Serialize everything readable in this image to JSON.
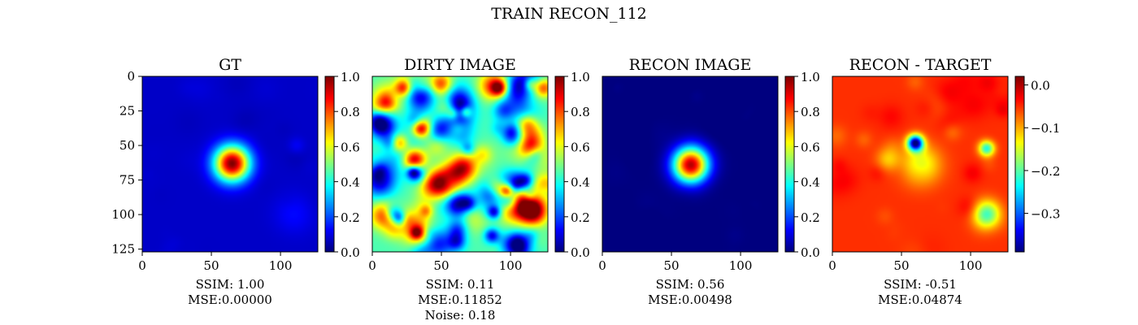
{
  "figure": {
    "suptitle": "TRAIN RECON_112"
  },
  "colors": {
    "jet": [
      "#00007f",
      "#0000ff",
      "#007fff",
      "#00ffff",
      "#7fff7f",
      "#ffff00",
      "#ff7f00",
      "#ff0000",
      "#7f0000"
    ]
  },
  "chart_data": [
    {
      "type": "heatmap",
      "title": "GT",
      "colormap": "jet",
      "image_size": [
        128,
        128
      ],
      "xticks": [
        0,
        50,
        100
      ],
      "yticks": [
        0,
        25,
        50,
        75,
        100,
        125
      ],
      "xlim": [
        0,
        127
      ],
      "ylim": [
        127,
        0
      ],
      "colorbar": {
        "ticks": [
          "0.0",
          "0.2",
          "0.4",
          "0.6",
          "0.8",
          "1.0"
        ],
        "range": [
          0.0,
          1.0
        ]
      },
      "background_level": 0.07,
      "blobs": [
        {
          "x": 65,
          "y": 63,
          "sigma": 9,
          "amp": 0.93
        },
        {
          "x": 110,
          "y": 100,
          "sigma": 10,
          "amp": 0.06
        },
        {
          "x": 112,
          "y": 50,
          "sigma": 4,
          "amp": 0.05
        }
      ],
      "metrics": [
        "SSIM: 1.00",
        "MSE:0.00000"
      ]
    },
    {
      "type": "heatmap",
      "title": "DIRTY IMAGE",
      "colormap": "jet",
      "image_size": [
        128,
        128
      ],
      "xticks": [
        0,
        50,
        100
      ],
      "xlim": [
        0,
        127
      ],
      "ylim": [
        127,
        0
      ],
      "colorbar": {
        "ticks": [
          "0.0",
          "0.2",
          "0.4",
          "0.6",
          "0.8",
          "1.0"
        ],
        "range": [
          0.0,
          1.0
        ]
      },
      "background_level": 0.45,
      "noise_level": 0.18,
      "blobs": [
        {
          "x": 66,
          "y": 66,
          "sigma": 7,
          "amp": 0.45
        },
        {
          "x": 92,
          "y": 8,
          "sigma": 4,
          "amp": 0.4
        },
        {
          "x": 34,
          "y": 38,
          "sigma": 4,
          "amp": 0.35
        }
      ],
      "metrics": [
        "SSIM: 0.11",
        "MSE:0.11852",
        "Noise: 0.18"
      ]
    },
    {
      "type": "heatmap",
      "title": "RECON IMAGE",
      "colormap": "jet",
      "image_size": [
        128,
        128
      ],
      "xticks": [
        0,
        50,
        100
      ],
      "xlim": [
        0,
        127
      ],
      "ylim": [
        127,
        0
      ],
      "colorbar": {
        "ticks": [
          "0.0",
          "0.2",
          "0.4",
          "0.6",
          "0.8",
          "1.0"
        ],
        "range": [
          0.0,
          1.0
        ]
      },
      "background_level": 0.0,
      "blobs": [
        {
          "x": 64,
          "y": 64,
          "sigma": 9,
          "amp": 0.95
        }
      ],
      "metrics": [
        "SSIM: 0.56",
        "MSE:0.00498"
      ]
    },
    {
      "type": "heatmap",
      "title": "RECON - TARGET",
      "colormap": "jet",
      "image_size": [
        128,
        128
      ],
      "xticks": [
        0,
        50,
        100
      ],
      "xlim": [
        0,
        127
      ],
      "ylim": [
        127,
        0
      ],
      "colorbar": {
        "ticks": [
          "0.0",
          "−0.1",
          "−0.2",
          "−0.3"
        ],
        "range": [
          -0.39,
          0.02
        ],
        "tick_values": [
          0.0,
          -0.1,
          -0.2,
          -0.3
        ]
      },
      "background_level": -0.05,
      "blobs": [
        {
          "x": 60,
          "y": 48,
          "sigma": 4,
          "amp": -0.33
        },
        {
          "x": 64,
          "y": 64,
          "sigma": 10,
          "amp": -0.1
        },
        {
          "x": 112,
          "y": 52,
          "sigma": 4,
          "amp": -0.18
        },
        {
          "x": 112,
          "y": 100,
          "sigma": 7,
          "amp": -0.16
        },
        {
          "x": 40,
          "y": 60,
          "sigma": 6,
          "amp": -0.06
        }
      ],
      "metrics": [
        "SSIM: -0.51",
        "MSE:0.04874"
      ]
    }
  ]
}
